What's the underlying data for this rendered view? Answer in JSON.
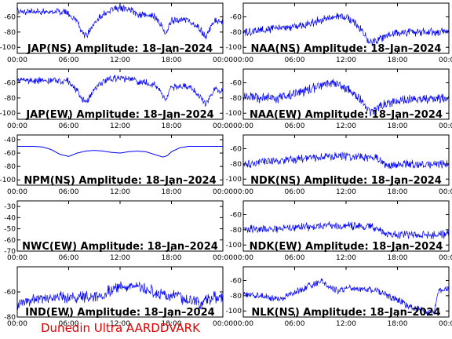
{
  "footer": "Dunedin Ultra AARDDVARK",
  "colors": {
    "signal": "#0000ff",
    "axis": "#000000",
    "footer": "#e00000",
    "background": "#ffffff"
  },
  "chart_data": [
    {
      "type": "line",
      "title": "JAP(NS) Amplitude: 18–Jan–2024",
      "x_ticks": [
        "00:00",
        "06:00",
        "12:00",
        "18:00",
        "00:00"
      ],
      "y_ticks": [
        -60,
        -80,
        -100
      ],
      "ylim": [
        -108,
        -42
      ],
      "series": [
        {
          "x": [
            0,
            1,
            2,
            3,
            4,
            5,
            6,
            7,
            7.5,
            8,
            8.5,
            9,
            10,
            11,
            12,
            13,
            14,
            15,
            16,
            16.8,
            17.3,
            18,
            19,
            20,
            21,
            22,
            22.5,
            23,
            24
          ],
          "values": [
            -53,
            -53,
            -53,
            -53,
            -53,
            -53,
            -55,
            -68,
            -80,
            -85,
            -78,
            -68,
            -57,
            -50,
            -48,
            -50,
            -56,
            -58,
            -60,
            -70,
            -82,
            -65,
            -63,
            -64,
            -72,
            -86,
            -75,
            -66,
            -66
          ],
          "band": 5
        }
      ]
    },
    {
      "type": "line",
      "title": "NAA(NS) Amplitude: 18–Jan–2024",
      "x_ticks": [
        "00:00",
        "06:00",
        "12:00",
        "18:00",
        "00:00"
      ],
      "y_ticks": [
        -60,
        -80,
        -100
      ],
      "ylim": [
        -108,
        -42
      ],
      "series": [
        {
          "x": [
            0,
            2,
            4,
            6,
            8,
            9,
            10,
            11,
            12,
            13,
            14,
            14.5,
            15,
            16,
            17,
            18,
            19,
            20,
            22,
            24
          ],
          "values": [
            -80,
            -78,
            -74,
            -73,
            -68,
            -64,
            -62,
            -60,
            -60,
            -66,
            -82,
            -90,
            -93,
            -88,
            -84,
            -82,
            -80,
            -80,
            -80,
            -79
          ],
          "band": 6
        }
      ]
    },
    {
      "type": "line",
      "title": "JAP(EW) Amplitude: 18–Jan–2024",
      "x_ticks": [
        "00:00",
        "06:00",
        "12:00",
        "18:00",
        "00:00"
      ],
      "y_ticks": [
        -60,
        -80,
        -100
      ],
      "ylim": [
        -108,
        -42
      ],
      "series": [
        {
          "x": [
            0,
            1,
            2,
            3,
            4,
            5,
            6,
            7,
            7.5,
            8,
            8.5,
            9,
            10,
            11,
            12,
            13,
            14,
            15,
            16,
            16.8,
            17.3,
            18,
            19,
            20,
            21,
            22,
            22.5,
            23,
            24
          ],
          "values": [
            -57,
            -57,
            -57,
            -57,
            -57,
            -57,
            -58,
            -70,
            -80,
            -86,
            -79,
            -68,
            -59,
            -55,
            -54,
            -55,
            -58,
            -60,
            -62,
            -72,
            -84,
            -66,
            -64,
            -66,
            -74,
            -88,
            -77,
            -70,
            -70
          ],
          "band": 5
        }
      ]
    },
    {
      "type": "line",
      "title": "NAA(EW) Amplitude: 18–Jan–2024",
      "x_ticks": [
        "00:00",
        "06:00",
        "12:00",
        "18:00",
        "00:00"
      ],
      "y_ticks": [
        -60,
        -80,
        -100
      ],
      "ylim": [
        -108,
        -42
      ],
      "series": [
        {
          "x": [
            0,
            2,
            4,
            6,
            8,
            9,
            10,
            11,
            12,
            13,
            14,
            14.5,
            15,
            16,
            17,
            18,
            19,
            20,
            22,
            24
          ],
          "values": [
            -78,
            -80,
            -80,
            -75,
            -68,
            -63,
            -60,
            -62,
            -68,
            -74,
            -86,
            -96,
            -98,
            -92,
            -86,
            -84,
            -83,
            -82,
            -82,
            -80
          ],
          "band": 7
        }
      ]
    },
    {
      "type": "line",
      "title": "NPM(NS) Amplitude: 18–Jan–2024",
      "x_ticks": [
        "00:00",
        "06:00",
        "12:00",
        "18:00",
        "00:00"
      ],
      "y_ticks": [
        -40,
        -60,
        -80,
        -100
      ],
      "ylim": [
        -108,
        -33
      ],
      "series": [
        {
          "x": [
            0,
            2,
            3,
            4,
            5,
            6,
            7,
            8,
            9,
            10,
            11,
            12,
            13,
            14,
            15,
            16,
            17,
            17.5,
            18,
            19,
            20,
            22,
            24
          ],
          "values": [
            -50,
            -50,
            -51,
            -55,
            -62,
            -65,
            -60,
            -57,
            -56,
            -57,
            -59,
            -60,
            -58,
            -57,
            -58,
            -62,
            -66,
            -64,
            -58,
            -52,
            -50,
            -50,
            -50
          ],
          "band": 1
        }
      ]
    },
    {
      "type": "line",
      "title": "NDK(NS) Amplitude: 18–Jan–2024",
      "x_ticks": [
        "00:00",
        "06:00",
        "12:00",
        "18:00",
        "00:00"
      ],
      "y_ticks": [
        -60,
        -80,
        -100
      ],
      "ylim": [
        -108,
        -42
      ],
      "series": [
        {
          "x": [
            0,
            2,
            4,
            6,
            8,
            10,
            12,
            14,
            15,
            16,
            16.5,
            17,
            18,
            20,
            22,
            24
          ],
          "values": [
            -80,
            -78,
            -76,
            -74,
            -72,
            -70,
            -70,
            -71,
            -72,
            -74,
            -80,
            -82,
            -80,
            -80,
            -81,
            -80
          ],
          "band": 6
        }
      ]
    },
    {
      "type": "line",
      "title": "NWC(EW) Amplitude: 18–Jan–2024",
      "x_ticks": [
        "00:00",
        "06:00",
        "12:00",
        "18:00",
        "00:00"
      ],
      "y_ticks": [
        -30,
        -40,
        -50,
        -60,
        -70
      ],
      "ylim": [
        -70,
        -25
      ],
      "series": []
    },
    {
      "type": "line",
      "title": "NDK(EW) Amplitude: 18–Jan–2024",
      "x_ticks": [
        "00:00",
        "06:00",
        "12:00",
        "18:00",
        "00:00"
      ],
      "y_ticks": [
        -60,
        -80,
        -100
      ],
      "ylim": [
        -108,
        -42
      ],
      "series": [
        {
          "x": [
            0,
            2,
            4,
            6,
            8,
            10,
            12,
            14,
            15,
            16,
            16.5,
            17,
            18,
            20,
            22,
            24
          ],
          "values": [
            -80,
            -79,
            -78,
            -77,
            -76,
            -75,
            -75,
            -76,
            -77,
            -79,
            -85,
            -88,
            -86,
            -86,
            -87,
            -86
          ],
          "band": 6
        }
      ]
    },
    {
      "type": "line",
      "title": "IND(EW) Amplitude: 18–Jan–2024",
      "x_ticks": [
        "00:00",
        "06:00",
        "12:00",
        "18:00",
        "00:00"
      ],
      "y_ticks": [
        -60,
        -80
      ],
      "ylim": [
        -80,
        -40
      ],
      "series": [
        {
          "x": [
            0,
            1,
            2,
            3,
            4,
            5,
            6,
            8,
            10,
            11,
            12,
            13,
            14,
            15,
            16,
            17,
            18,
            19,
            19.5,
            20,
            21,
            21.5,
            22,
            23,
            24
          ],
          "values": [
            -71,
            -68,
            -66,
            -65,
            -64,
            -64,
            -64,
            -64,
            -62,
            -58,
            -55,
            -55,
            -56,
            -57,
            -60,
            -63,
            -64,
            -62,
            -68,
            -66,
            -66,
            -72,
            -67,
            -64,
            -66
          ],
          "band": 5
        }
      ]
    },
    {
      "type": "line",
      "title": "NLK(NS) Amplitude: 18–Jan–2024",
      "x_ticks": [
        "00:00",
        "06:00",
        "12:00",
        "18:00",
        "00:00"
      ],
      "y_ticks": [
        -60,
        -80,
        -100
      ],
      "ylim": [
        -108,
        -42
      ],
      "series": [
        {
          "x": [
            0,
            2,
            4,
            5,
            6,
            7,
            8,
            9,
            10,
            11,
            12,
            14,
            16,
            17,
            18,
            19,
            20,
            21,
            21.5,
            22,
            22.3,
            22.6,
            23,
            24
          ],
          "values": [
            -77,
            -80,
            -84,
            -82,
            -75,
            -70,
            -65,
            -61,
            -68,
            -73,
            -70,
            -72,
            -74,
            -80,
            -85,
            -92,
            -97,
            -100,
            -103,
            -98,
            -102,
            -80,
            -72,
            -72
          ],
          "band": 5
        }
      ]
    }
  ]
}
